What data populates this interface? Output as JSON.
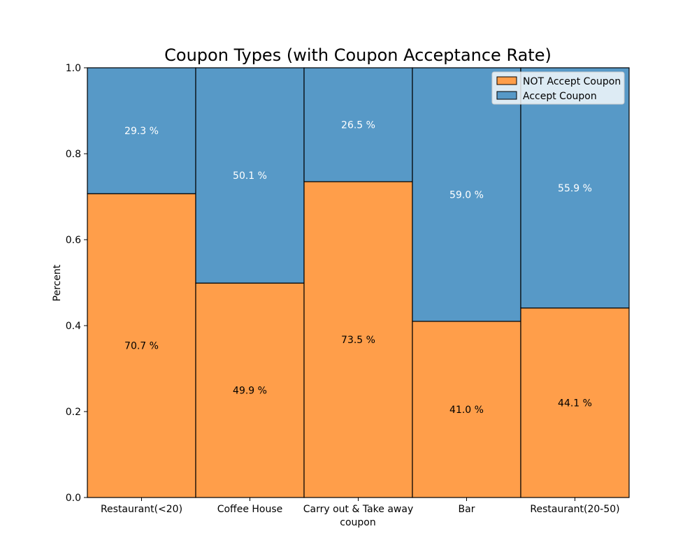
{
  "chart_data": {
    "type": "bar",
    "stacked": true,
    "normalized": true,
    "title": "Coupon Types (with Coupon Acceptance Rate)",
    "xlabel": "coupon",
    "ylabel": "Percent",
    "ylim": [
      0,
      1
    ],
    "yticks": [
      0.0,
      0.2,
      0.4,
      0.6,
      0.8,
      1.0
    ],
    "ytick_labels": [
      "0.0",
      "0.2",
      "0.4",
      "0.6",
      "0.8",
      "1.0"
    ],
    "categories": [
      "Restaurant(<20)",
      "Coffee House",
      "Carry out & Take away",
      "Bar",
      "Restaurant(20-50)"
    ],
    "series": [
      {
        "name": "NOT Accept Coupon",
        "color": "#ff9e4a",
        "label_color": "#000000",
        "values": [
          0.707,
          0.499,
          0.735,
          0.41,
          0.441
        ],
        "labels": [
          "70.7 %",
          "49.9 %",
          "73.5 %",
          "41.0 %",
          "44.1 %"
        ]
      },
      {
        "name": "Accept Coupon",
        "color": "#5799c7",
        "label_color": "#ffffff",
        "values": [
          0.293,
          0.501,
          0.265,
          0.59,
          0.559
        ],
        "labels": [
          "29.3 %",
          "50.1 %",
          "26.5 %",
          "59.0 %",
          "55.9 %"
        ]
      }
    ],
    "legend_position": "top-right",
    "grid": false
  }
}
